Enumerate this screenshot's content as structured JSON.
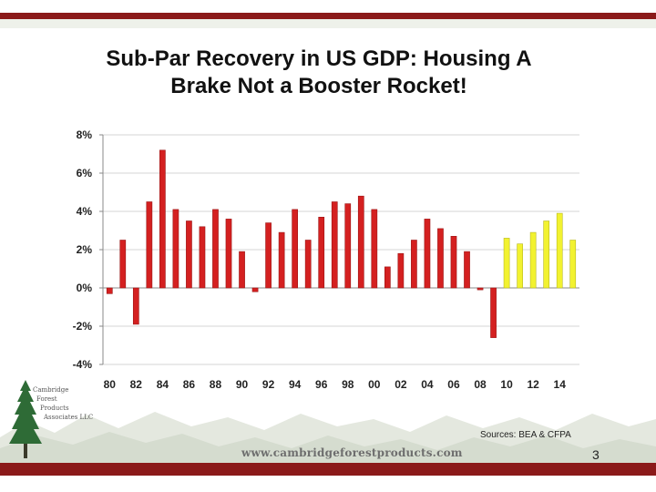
{
  "slide": {
    "title_line1": "Sub-Par Recovery in US GDP: Housing A",
    "title_line2": "Brake Not a Booster Rocket!",
    "source": "Sources: BEA & CFPA",
    "url": "www.cambridgeforestproducts.com",
    "page_number": "3",
    "logo": {
      "line1": "Cambridge",
      "line2": "Forest",
      "line3": "Products",
      "line4": "Associates LLC"
    },
    "colors": {
      "brand_bar": "#8b1a1a",
      "bar_red": "#d42020",
      "bar_yellow": "#f2f230",
      "logo_green": "#2e6b36"
    }
  },
  "chart_data": {
    "type": "bar",
    "title": "Sub-Par Recovery in US GDP: Housing A Brake Not a Booster Rocket!",
    "xlabel": "",
    "ylabel": "",
    "ylim": [
      -4,
      8
    ],
    "y_ticks": [
      8,
      6,
      4,
      2,
      0,
      -2,
      -4
    ],
    "y_tick_labels": [
      "8%",
      "6%",
      "4%",
      "2%",
      "0%",
      "-2%",
      "-4%"
    ],
    "x_tick_labels": [
      "80",
      "82",
      "84",
      "86",
      "88",
      "90",
      "92",
      "94",
      "96",
      "98",
      "00",
      "02",
      "04",
      "06",
      "08",
      "10",
      "12",
      "14"
    ],
    "categories": [
      "1980",
      "1981",
      "1982",
      "1983",
      "1984",
      "1985",
      "1986",
      "1987",
      "1988",
      "1989",
      "1990",
      "1991",
      "1992",
      "1993",
      "1994",
      "1995",
      "1996",
      "1997",
      "1998",
      "1999",
      "2000",
      "2001",
      "2002",
      "2003",
      "2004",
      "2005",
      "2006",
      "2007",
      "2008",
      "2009",
      "2010",
      "2011",
      "2012",
      "2013",
      "2014",
      "2015"
    ],
    "values": [
      -0.3,
      2.5,
      -1.9,
      4.5,
      7.2,
      4.1,
      3.5,
      3.2,
      4.1,
      3.6,
      1.9,
      -0.2,
      3.4,
      2.9,
      4.1,
      2.5,
      3.7,
      4.5,
      4.4,
      4.8,
      4.1,
      1.1,
      1.8,
      2.5,
      3.6,
      3.1,
      2.7,
      1.9,
      -0.1,
      -2.6,
      2.6,
      2.3,
      2.9,
      3.5,
      3.9,
      2.5
    ],
    "forecast_start": "2010",
    "grid": true,
    "legend": "none"
  }
}
